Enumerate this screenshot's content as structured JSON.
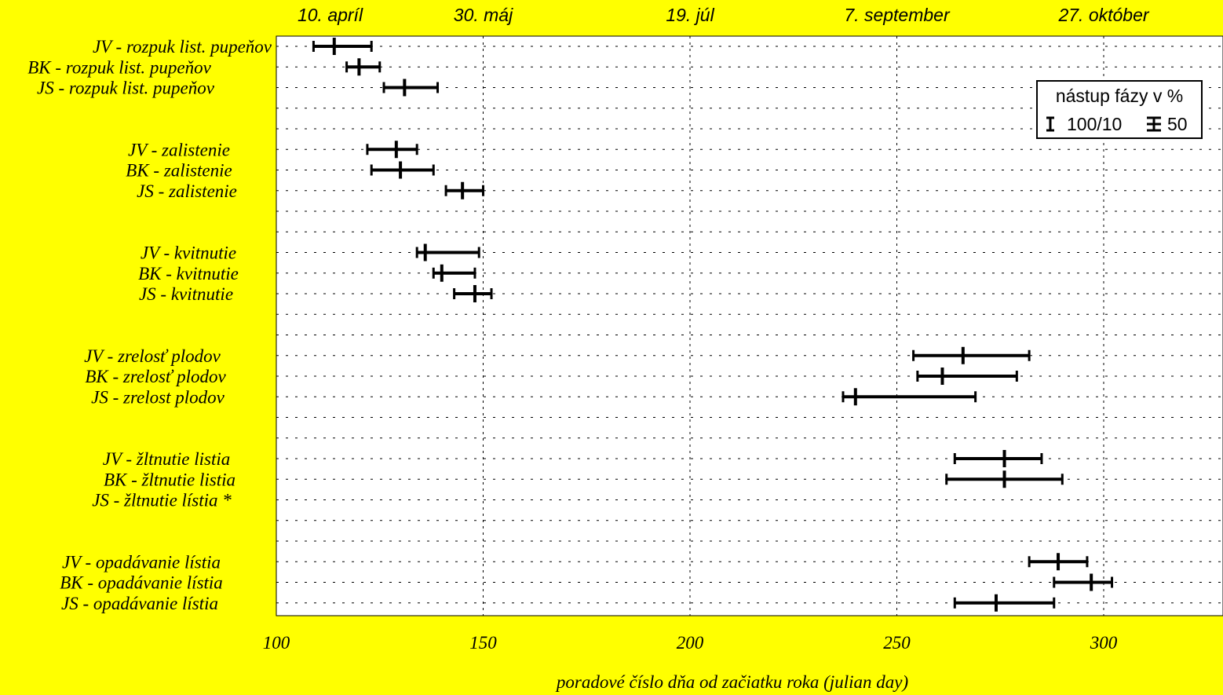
{
  "chart_data": {
    "type": "range-bar",
    "xlabel": "poradové číslo dňa od začiatku roka (julian day)",
    "xlim": [
      100,
      329
    ],
    "x_ticks": [
      100,
      150,
      200,
      250,
      300
    ],
    "x_tick_labels": [
      "100",
      "150",
      "200",
      "250",
      "300"
    ],
    "top_axis_labels": [
      {
        "x": 113,
        "label": "10. apríl"
      },
      {
        "x": 150,
        "label": "30. máj"
      },
      {
        "x": 200,
        "label": "19. júl"
      },
      {
        "x": 250,
        "label": "7. september"
      },
      {
        "x": 300,
        "label": "27. október"
      }
    ],
    "grid": true,
    "legend": {
      "title": "nástup fázy v %",
      "entries": [
        "100/10",
        "50"
      ],
      "placement": "top-right"
    },
    "rows": [
      {
        "label": "JV - rozpuk list. pupeňov",
        "start": 109,
        "end": 123,
        "mid": 114
      },
      {
        "label": "BK - rozpuk list. pupeňov",
        "start": 117,
        "end": 125,
        "mid": 120
      },
      {
        "label": "JS - rozpuk list. pupeňov",
        "start": 126,
        "end": 139,
        "mid": 131
      },
      {
        "label": ""
      },
      {
        "label": ""
      },
      {
        "label": "JV - zalistenie",
        "start": 122,
        "end": 134,
        "mid": 129
      },
      {
        "label": "BK - zalistenie",
        "start": 123,
        "end": 138,
        "mid": 130
      },
      {
        "label": "JS - zalistenie",
        "start": 141,
        "end": 150,
        "mid": 145
      },
      {
        "label": ""
      },
      {
        "label": ""
      },
      {
        "label": "JV - kvitnutie",
        "start": 134,
        "end": 149,
        "mid": 136
      },
      {
        "label": "BK - kvitnutie",
        "start": 138,
        "end": 148,
        "mid": 140
      },
      {
        "label": "JS - kvitnutie",
        "start": 143,
        "end": 152,
        "mid": 148
      },
      {
        "label": ""
      },
      {
        "label": ""
      },
      {
        "label": "JV - zrelosť plodov",
        "start": 254,
        "end": 282,
        "mid": 266
      },
      {
        "label": "BK - zrelosť plodov",
        "start": 255,
        "end": 279,
        "mid": 261
      },
      {
        "label": "JS - zrelost plodov",
        "start": 237,
        "end": 269,
        "mid": 240
      },
      {
        "label": ""
      },
      {
        "label": ""
      },
      {
        "label": "JV - žltnutie listia",
        "start": 264,
        "end": 285,
        "mid": 276
      },
      {
        "label": "BK - žltnutie listia",
        "start": 262,
        "end": 290,
        "mid": 276
      },
      {
        "label": "JS - žltnutie lístia *"
      },
      {
        "label": ""
      },
      {
        "label": ""
      },
      {
        "label": "JV - opadávanie lístia",
        "start": 282,
        "end": 296,
        "mid": 289
      },
      {
        "label": "BK - opadávanie lístia",
        "start": 288,
        "end": 302,
        "mid": 297
      },
      {
        "label": "JS - opadávanie lístia",
        "start": 264,
        "end": 288,
        "mid": 274
      }
    ]
  }
}
